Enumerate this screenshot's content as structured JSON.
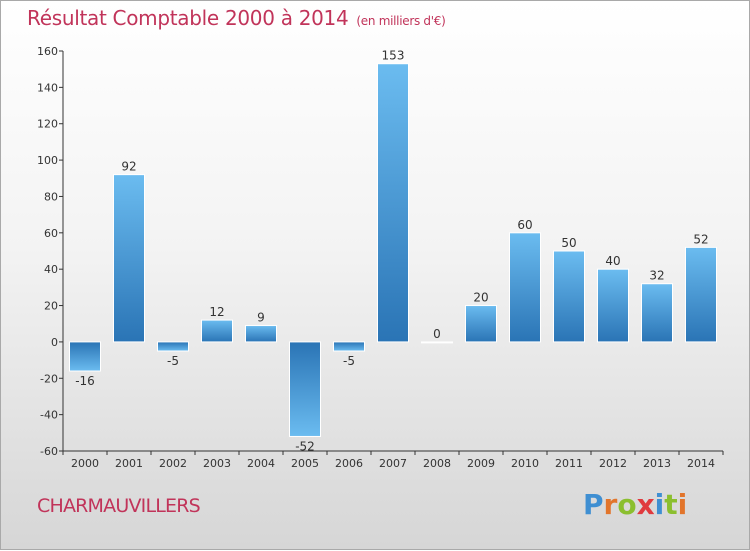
{
  "header": {
    "title": "Résultat Comptable 2000 à 2014",
    "unit": "(en milliers d'€)"
  },
  "commune": "CHARMAUVILLERS",
  "logo": {
    "text": "Proxiti",
    "letters": [
      {
        "char": "P",
        "color": "#3f8fd2"
      },
      {
        "char": "r",
        "color": "#e2752b"
      },
      {
        "char": "o",
        "color": "#8bbf2f"
      },
      {
        "char": "x",
        "color": "#e03a3e"
      },
      {
        "char": "i",
        "color": "#3f8fd2"
      },
      {
        "char": "t",
        "color": "#8bbf2f"
      },
      {
        "char": "i",
        "color": "#e2752b"
      }
    ]
  },
  "colors": {
    "title": "#c1345a",
    "bar_light": "#5eb3ec",
    "bar_dark": "#2a74b5",
    "axis": "#333333",
    "grid": "#d0d0d0"
  },
  "chart_data": {
    "type": "bar",
    "title": "Résultat Comptable 2000 à 2014",
    "xlabel": "",
    "ylabel": "",
    "categories": [
      "2000",
      "2001",
      "2002",
      "2003",
      "2004",
      "2005",
      "2006",
      "2007",
      "2008",
      "2009",
      "2010",
      "2011",
      "2012",
      "2013",
      "2014"
    ],
    "values": [
      -16,
      92,
      -5,
      12,
      9,
      -52,
      -5,
      153,
      0,
      20,
      60,
      50,
      40,
      32,
      52
    ],
    "ylim": [
      -60,
      160
    ],
    "yticks": [
      -60,
      -40,
      -20,
      0,
      20,
      40,
      60,
      80,
      100,
      120,
      140,
      160
    ],
    "grid": false
  }
}
